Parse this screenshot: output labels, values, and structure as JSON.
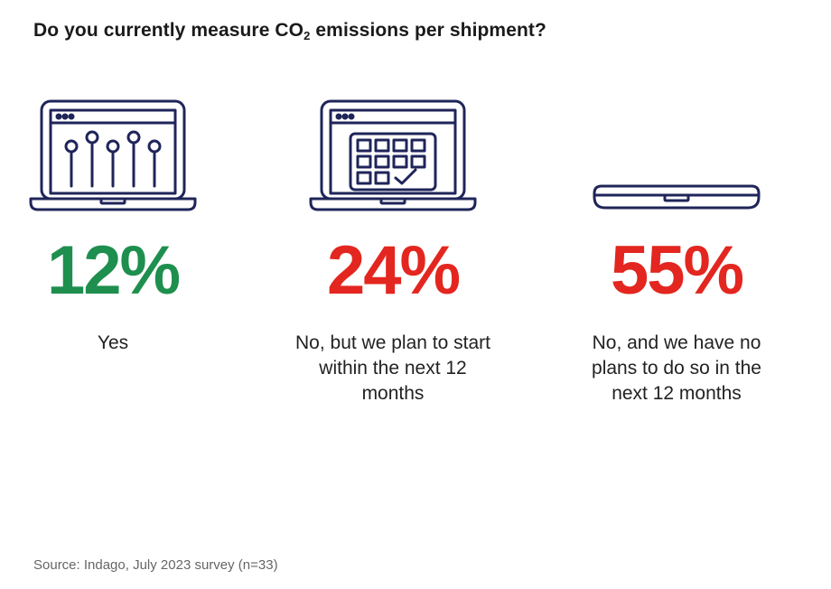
{
  "title": {
    "prefix": "Do you currently measure CO",
    "subscript": "2",
    "suffix": " emissions per shipment?"
  },
  "chart_data": {
    "type": "infographic",
    "title": "Do you currently measure CO2 emissions per shipment?",
    "items": [
      {
        "value": 12,
        "value_label": "12%",
        "label": "Yes",
        "color": "#1e8f4e",
        "icon": "laptop-sliders-icon"
      },
      {
        "value": 24,
        "value_label": "24%",
        "label": "No, but we plan to start within the next 12 months",
        "color": "#e3261f",
        "icon": "laptop-calendar-icon"
      },
      {
        "value": 55,
        "value_label": "55%",
        "label": "No, and we have no plans to do so in the next 12 months",
        "color": "#e3261f",
        "icon": "closed-laptop-icon"
      }
    ]
  },
  "source": "Source: Indago, July 2023 survey (n=33)",
  "icon_color": "#1f2559"
}
